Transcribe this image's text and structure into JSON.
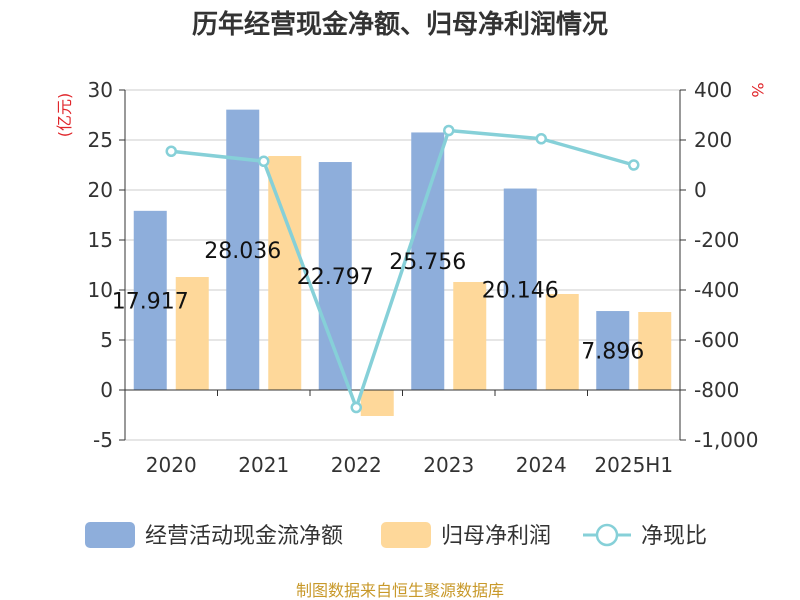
{
  "chart_data": {
    "type": "bar",
    "title": "历年经营现金净额、归母净利润情况",
    "categories": [
      "2020",
      "2021",
      "2022",
      "2023",
      "2024",
      "2025H1"
    ],
    "y_left": {
      "unit": "(亿元)",
      "min": -5,
      "max": 30,
      "ticks": [
        "30",
        "25",
        "20",
        "15",
        "10",
        "5",
        "0",
        "-5"
      ]
    },
    "y_right": {
      "unit": "%",
      "min": -1000,
      "max": 400,
      "ticks": [
        "400",
        "200",
        "0",
        "-200",
        "-400",
        "-600",
        "-800",
        "-1,000"
      ]
    },
    "series": [
      {
        "name": "经营活动现金流净额",
        "type": "bar",
        "axis": "left",
        "color": "#8eaedb",
        "values": [
          17.917,
          28.036,
          22.797,
          25.756,
          20.146,
          7.896
        ],
        "labels": [
          "17.917",
          "28.036",
          "22.797",
          "25.756",
          "20.146",
          "7.896"
        ]
      },
      {
        "name": "归母净利润",
        "type": "bar",
        "axis": "left",
        "color": "#fed89a",
        "values": [
          11.3,
          23.4,
          -2.6,
          10.8,
          9.6,
          7.8
        ]
      },
      {
        "name": "净现比",
        "type": "line",
        "axis": "right",
        "color": "#86d0d8",
        "values": [
          155,
          115,
          -870,
          238,
          205,
          100
        ]
      }
    ],
    "grid": true,
    "legend": "bottom"
  },
  "footer": {
    "source": "制图数据来自恒生聚源数据库"
  }
}
